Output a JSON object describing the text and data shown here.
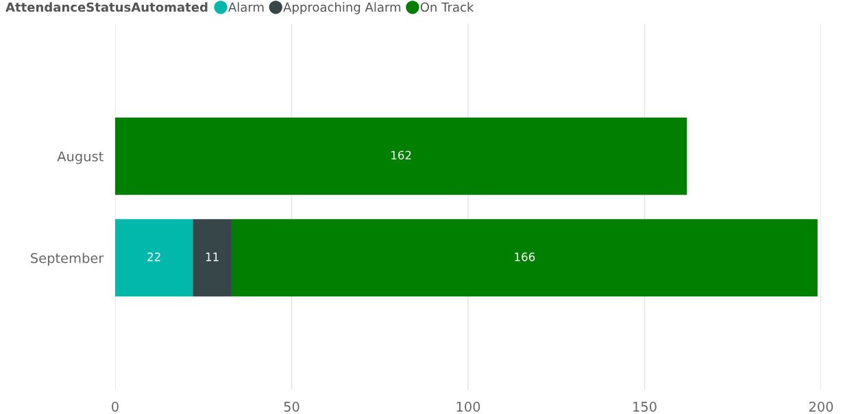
{
  "chart_data": {
    "type": "bar",
    "orientation": "horizontal",
    "stacked": true,
    "legend_title": "AttendanceStatusAutomated",
    "legend": "top left",
    "categories": [
      "August",
      "September"
    ],
    "series": [
      {
        "name": "Alarm",
        "color": "#01b8aa",
        "values": [
          null,
          22
        ]
      },
      {
        "name": "Approaching Alarm",
        "color": "#374649",
        "values": [
          null,
          11
        ]
      },
      {
        "name": "On Track",
        "color": "#007f00",
        "values": [
          162,
          166
        ]
      }
    ],
    "xlim": [
      0,
      200
    ],
    "xticks": [
      0,
      50,
      100,
      150,
      200
    ],
    "grid": "x",
    "data_labels": true,
    "marker": "circle"
  }
}
